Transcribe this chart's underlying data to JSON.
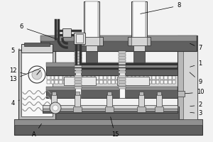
{
  "bg_color": "#f2f2f2",
  "line_color": "#333333",
  "dark_gray": "#606060",
  "mid_gray": "#909090",
  "light_gray": "#b8b8b8",
  "very_light_gray": "#d5d5d5",
  "white": "#f8f8f8",
  "off_white": "#e8e8e8",
  "figsize": [
    3.0,
    2.0
  ],
  "dpi": 100
}
